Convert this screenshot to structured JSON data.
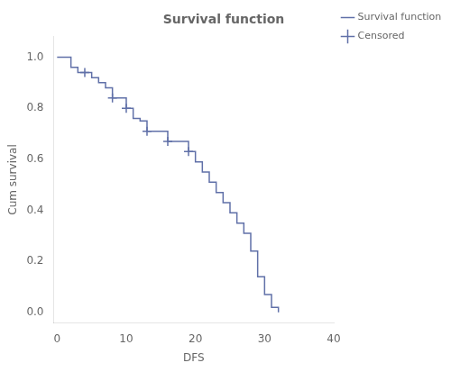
{
  "chart_data": {
    "type": "line",
    "title": "Survival function",
    "xlabel": "DFS",
    "ylabel": "Cum survival",
    "xlim": [
      -0.5,
      40
    ],
    "ylim": [
      -0.04,
      1.08
    ],
    "xticks": [
      0,
      10,
      20,
      30,
      40
    ],
    "yticks": [
      {
        "value": 0.0,
        "label": "0.0"
      },
      0.2,
      0.4,
      0.6,
      0.8,
      {
        "value": 1.0,
        "label": "1.0"
      }
    ],
    "grid": false,
    "legend": "right",
    "series": [
      {
        "name": "Survival function",
        "type": "line",
        "line_style": "step",
        "color": "#6070a8",
        "x": [
          0,
          2,
          3,
          4,
          5,
          6,
          7,
          8,
          9,
          10,
          11,
          12,
          13,
          14,
          15,
          16,
          17,
          18,
          19,
          20,
          21,
          22,
          23,
          24,
          25,
          26,
          27,
          28,
          29,
          30,
          31,
          32
        ],
        "values": [
          1.0,
          0.96,
          0.94,
          0.94,
          0.92,
          0.9,
          0.88,
          0.84,
          0.84,
          0.8,
          0.76,
          0.75,
          0.71,
          0.71,
          0.71,
          0.67,
          0.67,
          0.67,
          0.63,
          0.59,
          0.55,
          0.51,
          0.47,
          0.43,
          0.39,
          0.35,
          0.31,
          0.24,
          0.14,
          0.07,
          0.02,
          0.0
        ]
      },
      {
        "name": "Censored",
        "type": "scatter",
        "marker": "+",
        "color": "#6070a8",
        "x": [
          4,
          8,
          10,
          13,
          16,
          19
        ],
        "values": [
          0.94,
          0.84,
          0.8,
          0.71,
          0.67,
          0.63
        ]
      }
    ]
  }
}
